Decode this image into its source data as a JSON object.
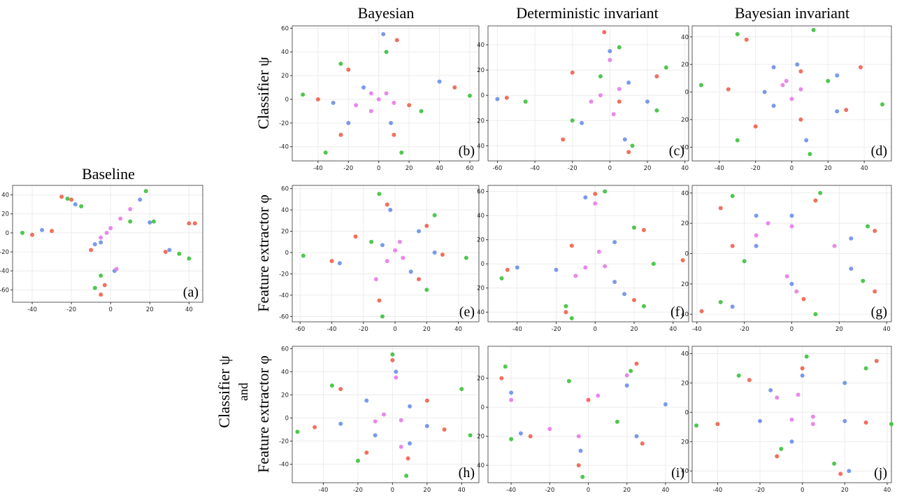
{
  "figure": {
    "column_titles": [
      "Bayesian",
      "Deterministic invariant",
      "Bayesian invariant"
    ],
    "baseline_title": "Baseline",
    "row_labels": [
      "Classifier ψ",
      "Feature  extractor φ"
    ],
    "row3_labels": [
      "Classifier ψ",
      "and",
      "Feature  extractor φ"
    ]
  },
  "chart_data": [
    {
      "type": "scatter",
      "panel_label": "(a)",
      "xlim": [
        -50,
        47
      ],
      "ylim": [
        -73,
        50
      ],
      "xticks": [
        -40,
        -20,
        0,
        20,
        40
      ],
      "yticks": [
        40,
        20,
        0,
        -20,
        -40,
        -60
      ],
      "grid": true,
      "series": [
        {
          "color": "#f0604d",
          "x": [
            -25,
            -20,
            -40,
            -30,
            -10,
            40,
            43,
            28,
            -5,
            -3
          ],
          "y": [
            38,
            35,
            -2,
            2,
            -18,
            10,
            10,
            -20,
            -65,
            -55
          ]
        },
        {
          "color": "#3cc13c",
          "x": [
            -22,
            -15,
            -45,
            18,
            22,
            35,
            40,
            -8,
            -5,
            10
          ],
          "y": [
            36,
            28,
            0,
            44,
            12,
            -22,
            -27,
            -58,
            -45,
            12
          ]
        },
        {
          "color": "#6b8fe8",
          "x": [
            -18,
            15,
            -35,
            20,
            30,
            -5,
            2,
            -8
          ],
          "y": [
            30,
            35,
            3,
            11,
            -18,
            -10,
            -40,
            -12
          ]
        },
        {
          "color": "#e57ce8",
          "x": [
            0,
            5,
            -5,
            10,
            -2,
            3
          ],
          "y": [
            5,
            15,
            -5,
            25,
            0,
            -38
          ]
        }
      ]
    },
    {
      "type": "scatter",
      "panel_label": "(b)",
      "xlim": [
        -57,
        66
      ],
      "ylim": [
        -52,
        62
      ],
      "xticks": [
        -40,
        -20,
        0,
        20,
        40,
        60
      ],
      "yticks": [
        60,
        40,
        20,
        0,
        -20,
        -40
      ],
      "grid": true,
      "series": [
        {
          "color": "#f0604d",
          "x": [
            12,
            -20,
            50,
            -40,
            -25,
            10,
            20
          ],
          "y": [
            50,
            25,
            10,
            0,
            -30,
            -30,
            -5
          ]
        },
        {
          "color": "#3cc13c",
          "x": [
            5,
            -25,
            60,
            -50,
            -35,
            15,
            28
          ],
          "y": [
            40,
            30,
            3,
            4,
            -45,
            -45,
            -10
          ]
        },
        {
          "color": "#6b8fe8",
          "x": [
            3,
            -10,
            40,
            -30,
            -20,
            8
          ],
          "y": [
            55,
            10,
            15,
            -3,
            -20,
            -20
          ]
        },
        {
          "color": "#e57ce8",
          "x": [
            0,
            -5,
            10,
            -15,
            -5,
            5
          ],
          "y": [
            0,
            5,
            -3,
            -5,
            -10,
            5
          ]
        }
      ]
    },
    {
      "type": "scatter",
      "panel_label": "(c)",
      "xlim": [
        -65,
        42
      ],
      "ylim": [
        -52,
        55
      ],
      "xticks": [
        -60,
        -40,
        -20,
        0,
        20,
        40
      ],
      "yticks": [
        40,
        20,
        0,
        {
          "value": -20,
          "label": "20"
        },
        {
          "value": -40,
          "label": "40"
        }
      ],
      "grid": true,
      "series": [
        {
          "color": "#f0604d",
          "x": [
            -3,
            -20,
            25,
            -55,
            -25,
            10,
            5
          ],
          "y": [
            50,
            18,
            15,
            -2,
            -35,
            -45,
            -5
          ]
        },
        {
          "color": "#3cc13c",
          "x": [
            5,
            30,
            -5,
            -45,
            -20,
            12,
            25
          ],
          "y": [
            38,
            22,
            15,
            -5,
            -20,
            -40,
            -12
          ]
        },
        {
          "color": "#6b8fe8",
          "x": [
            0,
            10,
            -60,
            -15,
            8,
            20
          ],
          "y": [
            35,
            10,
            -3,
            -22,
            -35,
            -5
          ]
        },
        {
          "color": "#e57ce8",
          "x": [
            0,
            -5,
            5,
            -10,
            2
          ],
          "y": [
            28,
            0,
            5,
            -5,
            -15
          ]
        }
      ]
    },
    {
      "type": "scatter",
      "panel_label": "(d)",
      "xlim": [
        -55,
        55
      ],
      "ylim": [
        -50,
        48
      ],
      "xticks": [
        -40,
        -20,
        0,
        20,
        40
      ],
      "yticks": [
        40,
        20,
        0,
        {
          "value": -20,
          "label": "20"
        },
        {
          "value": -40,
          "label": "40"
        }
      ],
      "grid": true,
      "series": [
        {
          "color": "#f0604d",
          "x": [
            -25,
            5,
            38,
            -35,
            -20,
            5,
            30
          ],
          "y": [
            38,
            15,
            18,
            2,
            -25,
            -20,
            -13
          ]
        },
        {
          "color": "#3cc13c",
          "x": [
            -30,
            12,
            20,
            -50,
            -30,
            10,
            50
          ],
          "y": [
            42,
            45,
            8,
            5,
            -35,
            -45,
            -9
          ]
        },
        {
          "color": "#6b8fe8",
          "x": [
            -10,
            3,
            25,
            -15,
            -10,
            8,
            25
          ],
          "y": [
            18,
            20,
            12,
            0,
            -10,
            -35,
            -14
          ]
        },
        {
          "color": "#e57ce8",
          "x": [
            -5,
            0,
            5,
            -3
          ],
          "y": [
            5,
            -5,
            2,
            8
          ]
        }
      ]
    },
    {
      "type": "scatter",
      "panel_label": "(e)",
      "xlim": [
        -65,
        53
      ],
      "ylim": [
        -65,
        63
      ],
      "xticks": [
        -60,
        -40,
        -20,
        0,
        20,
        40
      ],
      "yticks": [
        60,
        40,
        20,
        0,
        -20,
        -40,
        -60
      ],
      "grid": true,
      "series": [
        {
          "color": "#f0604d",
          "x": [
            -5,
            20,
            -40,
            -25,
            30,
            15,
            -10
          ],
          "y": [
            45,
            25,
            -8,
            15,
            -2,
            -25,
            -45
          ]
        },
        {
          "color": "#3cc13c",
          "x": [
            -10,
            25,
            -58,
            -15,
            45,
            20,
            -8
          ],
          "y": [
            55,
            35,
            -3,
            10,
            -5,
            -35,
            -60
          ]
        },
        {
          "color": "#6b8fe8",
          "x": [
            -3,
            15,
            -35,
            -8,
            25,
            10
          ],
          "y": [
            40,
            20,
            -10,
            7,
            0,
            -18
          ]
        },
        {
          "color": "#e57ce8",
          "x": [
            0,
            5,
            -12,
            3,
            -5
          ],
          "y": [
            2,
            -5,
            -25,
            10,
            -8
          ]
        }
      ]
    },
    {
      "type": "scatter",
      "panel_label": "(f)",
      "xlim": [
        -55,
        48
      ],
      "ylim": [
        -48,
        65
      ],
      "xticks": [
        -40,
        -20,
        0,
        20,
        40
      ],
      "yticks": [
        60,
        40,
        20,
        0,
        {
          "value": -20,
          "label": "20"
        },
        {
          "value": -40,
          "label": "40"
        }
      ],
      "grid": true,
      "series": [
        {
          "color": "#f0604d",
          "x": [
            0,
            25,
            45,
            -45,
            -12,
            -15,
            20
          ],
          "y": [
            58,
            28,
            3,
            -5,
            15,
            -40,
            -30
          ]
        },
        {
          "color": "#3cc13c",
          "x": [
            5,
            20,
            30,
            -48,
            -15,
            -12,
            25
          ],
          "y": [
            60,
            30,
            0,
            -12,
            -35,
            -45,
            -35
          ]
        },
        {
          "color": "#6b8fe8",
          "x": [
            -5,
            10,
            -40,
            -20,
            15,
            10
          ],
          "y": [
            55,
            18,
            -3,
            -5,
            -25,
            -15
          ]
        },
        {
          "color": "#e57ce8",
          "x": [
            0,
            -5,
            -10,
            5,
            2
          ],
          "y": [
            50,
            -3,
            -10,
            -2,
            10
          ]
        }
      ]
    },
    {
      "type": "scatter",
      "panel_label": "(g)",
      "xlim": [
        -42,
        42
      ],
      "ylim": [
        -45,
        45
      ],
      "xticks": [
        -40,
        -20,
        0,
        20,
        40
      ],
      "yticks": [
        40,
        20,
        0,
        {
          "value": -20,
          "label": "20"
        },
        {
          "value": -40,
          "label": "40"
        }
      ],
      "grid": true,
      "series": [
        {
          "color": "#f0604d",
          "x": [
            -30,
            10,
            -25,
            35,
            35,
            -38,
            5
          ],
          "y": [
            30,
            35,
            5,
            15,
            -25,
            -38,
            -30
          ]
        },
        {
          "color": "#3cc13c",
          "x": [
            -25,
            12,
            -20,
            32,
            30,
            -30,
            10
          ],
          "y": [
            38,
            40,
            -5,
            18,
            -18,
            -32,
            -40
          ]
        },
        {
          "color": "#6b8fe8",
          "x": [
            -15,
            0,
            -15,
            25,
            25,
            -25,
            0
          ],
          "y": [
            25,
            25,
            5,
            10,
            -10,
            -35,
            -20
          ]
        },
        {
          "color": "#e57ce8",
          "x": [
            -10,
            -15,
            0,
            18,
            -2,
            2
          ],
          "y": [
            20,
            12,
            18,
            5,
            -15,
            -25
          ]
        }
      ]
    },
    {
      "type": "scatter",
      "panel_label": "(h)",
      "xlim": [
        -58,
        50
      ],
      "ylim": [
        -56,
        62
      ],
      "xticks": [
        -40,
        -20,
        0,
        20,
        40
      ],
      "yticks": [
        60,
        40,
        20,
        0,
        -20,
        -40
      ],
      "grid": true,
      "series": [
        {
          "color": "#f0604d",
          "x": [
            0,
            -30,
            20,
            -45,
            30,
            -15,
            9
          ],
          "y": [
            50,
            25,
            15,
            -8,
            -10,
            -30,
            -35
          ]
        },
        {
          "color": "#3cc13c",
          "x": [
            0,
            -35,
            40,
            -55,
            45,
            -20,
            8
          ],
          "y": [
            55,
            28,
            25,
            -12,
            -15,
            -37,
            -50
          ]
        },
        {
          "color": "#6b8fe8",
          "x": [
            2,
            -15,
            10,
            -30,
            20,
            -10,
            10
          ],
          "y": [
            40,
            15,
            10,
            -5,
            -7,
            -15,
            -22
          ]
        },
        {
          "color": "#e57ce8",
          "x": [
            2,
            -5,
            5,
            -10,
            5
          ],
          "y": [
            35,
            3,
            -2,
            -3,
            -25
          ]
        }
      ]
    },
    {
      "type": "scatter",
      "panel_label": "(i)",
      "xlim": [
        -52,
        52
      ],
      "ylim": [
        -52,
        42
      ],
      "xticks": [
        -40,
        -20,
        0,
        20,
        40
      ],
      "yticks": [
        20,
        0,
        {
          "value": -20,
          "label": "20"
        },
        {
          "value": -40,
          "label": "40"
        }
      ],
      "grid": true,
      "series": [
        {
          "color": "#f0604d",
          "x": [
            -45,
            -30,
            25,
            0,
            28,
            -5
          ],
          "y": [
            20,
            -20,
            30,
            5,
            -25,
            -40
          ]
        },
        {
          "color": "#3cc13c",
          "x": [
            -43,
            -40,
            22,
            -10,
            15,
            -3
          ],
          "y": [
            28,
            -22,
            25,
            18,
            -10,
            -48
          ]
        },
        {
          "color": "#6b8fe8",
          "x": [
            -40,
            -35,
            20,
            40,
            25,
            -4
          ],
          "y": [
            10,
            -18,
            15,
            2,
            -20,
            -30
          ]
        },
        {
          "color": "#e57ce8",
          "x": [
            -40,
            -20,
            20,
            5,
            -5
          ],
          "y": [
            5,
            -15,
            22,
            8,
            -20
          ]
        }
      ]
    },
    {
      "type": "scatter",
      "panel_label": "(j)",
      "xlim": [
        -52,
        42
      ],
      "ylim": [
        -48,
        45
      ],
      "xticks": [
        -40,
        -20,
        0,
        20,
        40
      ],
      "yticks": [
        40,
        20,
        0,
        {
          "value": -20,
          "label": "20"
        },
        {
          "value": -40,
          "label": "40"
        }
      ],
      "grid": true,
      "series": [
        {
          "color": "#f0604d",
          "x": [
            -40,
            30,
            -25,
            0,
            35,
            -12,
            18
          ],
          "y": [
            -8,
            -7,
            22,
            30,
            35,
            -30,
            -42
          ]
        },
        {
          "color": "#3cc13c",
          "x": [
            -50,
            42,
            -30,
            2,
            30,
            -10,
            15
          ],
          "y": [
            -9,
            -8,
            25,
            38,
            30,
            -25,
            -35
          ]
        },
        {
          "color": "#6b8fe8",
          "x": [
            -20,
            20,
            -15,
            0,
            20,
            -5,
            22
          ],
          "y": [
            -6,
            -6,
            15,
            25,
            20,
            -20,
            -40
          ]
        },
        {
          "color": "#e57ce8",
          "x": [
            -5,
            5,
            -12,
            -2,
            5
          ],
          "y": [
            -5,
            -3,
            10,
            12,
            -8
          ]
        }
      ]
    }
  ]
}
